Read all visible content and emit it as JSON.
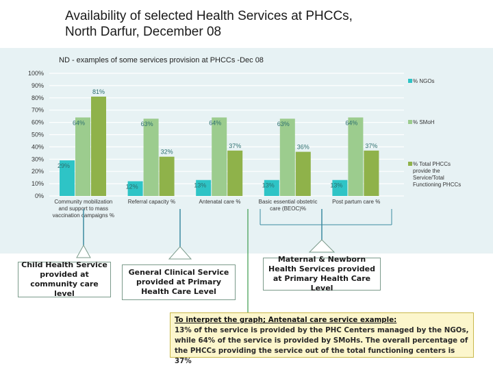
{
  "title": {
    "line1": "Availability of selected Health Services at PHCCs,",
    "line2": "North Darfur, December 08"
  },
  "chart_data": {
    "type": "bar",
    "title": "ND - examples of some services provision at PHCCs -Dec 08",
    "categories": [
      [
        "Community mobilization",
        "and support to mass",
        "vaccination campaigns %"
      ],
      [
        "Referral capacity %"
      ],
      [
        "Antenatal care %"
      ],
      [
        "Basic essential obstetric",
        "care (BEOC)%"
      ],
      [
        "Post partum care %"
      ]
    ],
    "series": [
      {
        "name": "% NGOs",
        "color": "#2ec4c6",
        "values": [
          29,
          12,
          13,
          13,
          13
        ],
        "labels": [
          "29%",
          "12%",
          "13%",
          "13%",
          "13%"
        ]
      },
      {
        "name": "% SMoH",
        "color": "#9ccc8e",
        "values": [
          64,
          63,
          64,
          63,
          64
        ],
        "labels": [
          "64%",
          "63%",
          "64%",
          "63%",
          "64%"
        ]
      },
      {
        "name": [
          "% Total PHCCs",
          "provide the",
          "Service/Total",
          "Functioning PHCCs"
        ],
        "color": "#8fb24a",
        "values": [
          81,
          32,
          37,
          36,
          37
        ],
        "labels": [
          "81%",
          "32%",
          "37%",
          "36%",
          "37%"
        ]
      }
    ],
    "yticks": [
      "0%",
      "10%",
      "20%",
      "30%",
      "40%",
      "50%",
      "60%",
      "70%",
      "80%",
      "90%",
      "100%"
    ],
    "ylim": [
      0,
      100
    ],
    "grid": true,
    "legend": "right"
  },
  "boxes": {
    "child": "Child Health Service provided at community care level",
    "general": "General Clinical Service provided at Primary Health Care Level",
    "maternal": "Maternal & Newborn Health Services provided at Primary Health Care Level"
  },
  "interpret": {
    "heading": "To interpret the graph; Antenatal care service example:",
    "body": "13% of the service is provided by the PHC Centers managed by the NGOs, while 64% of the service is provided by SMoHs. The overall percentage of the PHCCs providing the service out of the total functioning centers is 37%"
  }
}
